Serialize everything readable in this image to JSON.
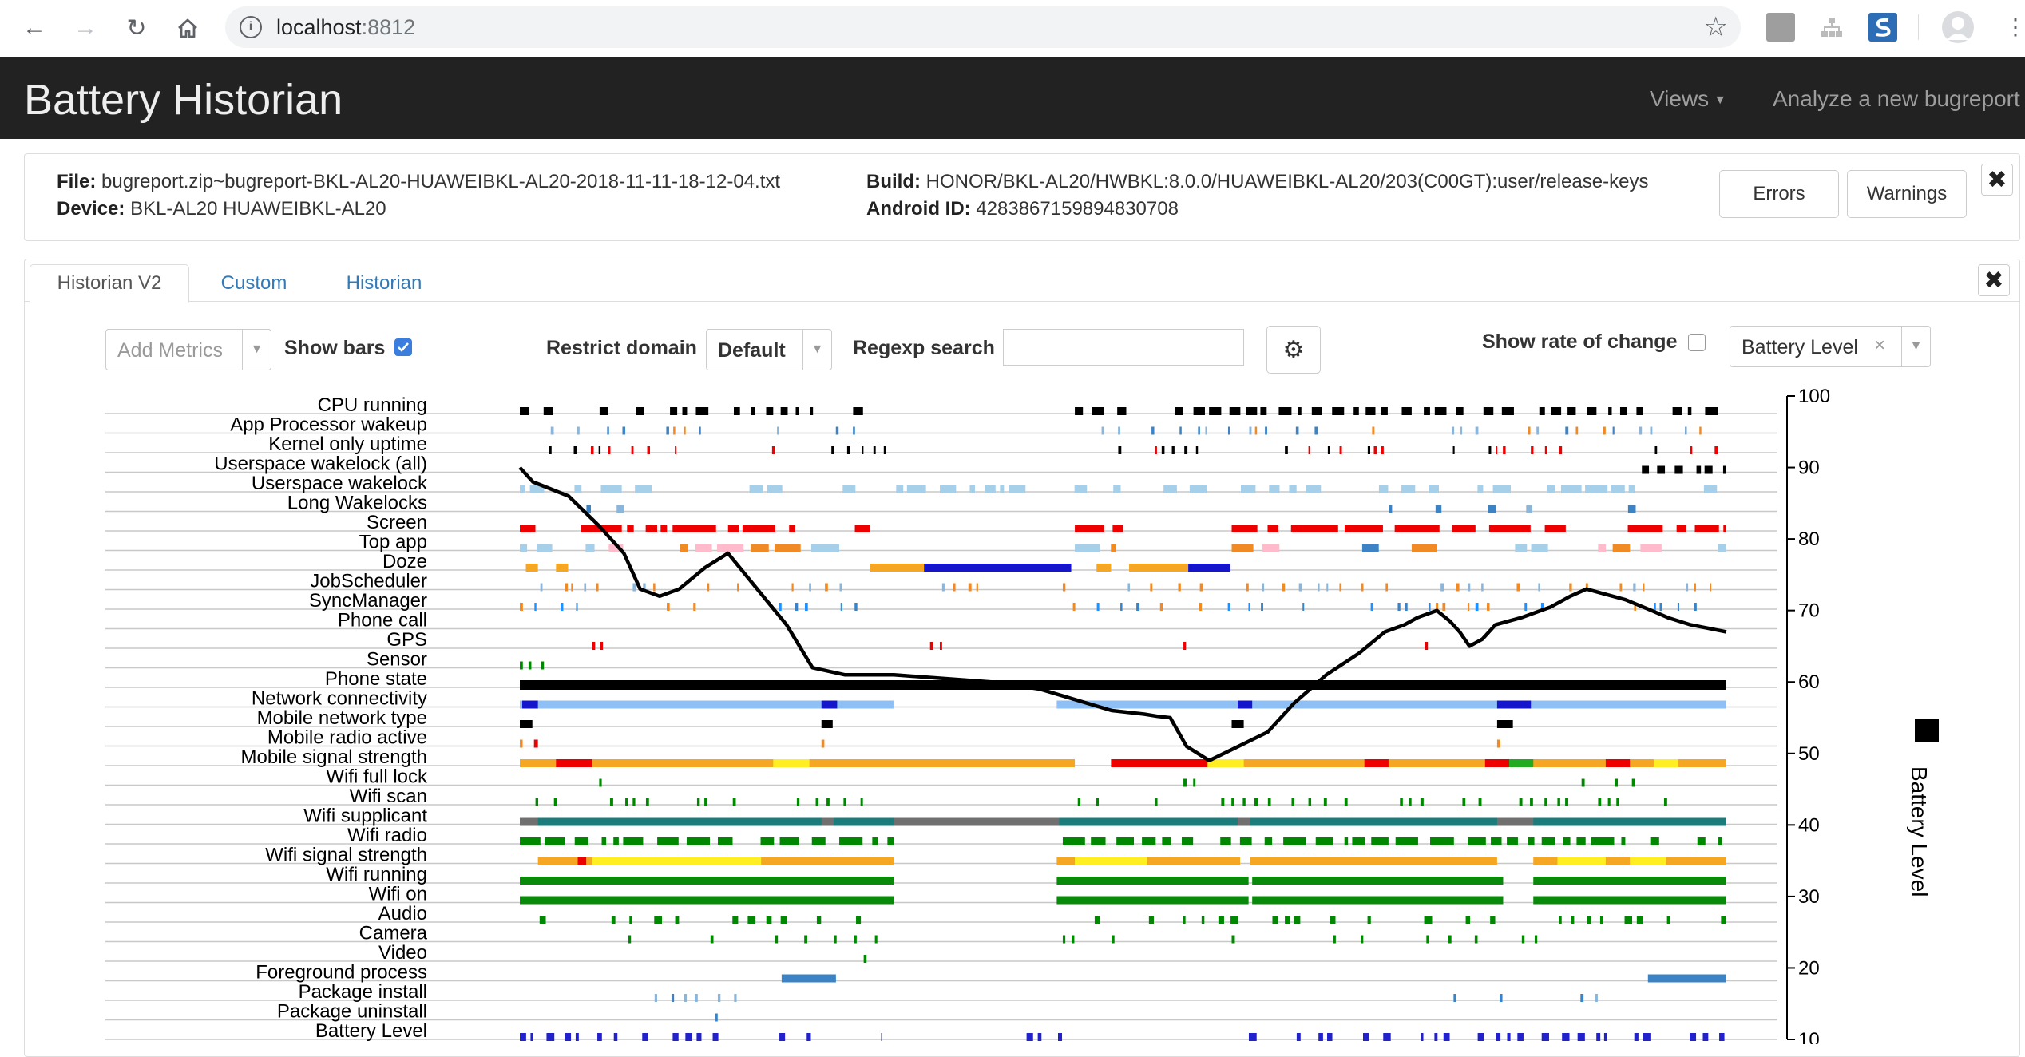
{
  "browser": {
    "url_host": "localhost",
    "url_port": ":8812"
  },
  "header": {
    "title": "Battery Historian",
    "views_label": "Views",
    "analyze_label": "Analyze a new bugreport"
  },
  "file_info": {
    "file_label": "File:",
    "file_value": "bugreport.zip~bugreport-BKL-AL20-HUAWEIBKL-AL20-2018-11-11-18-12-04.txt",
    "device_label": "Device:",
    "device_value": "BKL-AL20 HUAWEIBKL-AL20",
    "build_label": "Build:",
    "build_value": "HONOR/BKL-AL20/HWBKL:8.0.0/HUAWEIBKL-AL20/203(C00GT):user/release-keys",
    "android_id_label": "Android ID:",
    "android_id_value": "4283867159894830708",
    "errors_label": "Errors",
    "warnings_label": "Warnings"
  },
  "tabs": [
    {
      "label": "Historian V2",
      "active": true
    },
    {
      "label": "Custom",
      "active": false
    },
    {
      "label": "Historian",
      "active": false
    }
  ],
  "controls": {
    "add_metrics_placeholder": "Add Metrics",
    "show_bars_label": "Show bars",
    "show_bars_checked": true,
    "restrict_domain_label": "Restrict domain",
    "restrict_domain_value": "Default",
    "regexp_label": "Regexp search",
    "regexp_value": "",
    "show_rate_label": "Show rate of change",
    "show_rate_checked": false,
    "battery_select_value": "Battery Level"
  },
  "colors": {
    "accent_link": "#337ab7",
    "header_bg": "#222222",
    "checkbox": "#3b7ddd"
  },
  "chart_data": {
    "type": "line",
    "rows": [
      "CPU running",
      "App Processor wakeup",
      "Kernel only uptime",
      "Userspace wakelock (all)",
      "Userspace wakelock",
      "Long Wakelocks",
      "Screen",
      "Top app",
      "Doze",
      "JobScheduler",
      "SyncManager",
      "Phone call",
      "GPS",
      "Sensor",
      "Phone state",
      "Network connectivity",
      "Mobile network type",
      "Mobile radio active",
      "Mobile signal strength",
      "Wifi full lock",
      "Wifi scan",
      "Wifi supplicant",
      "Wifi radio",
      "Wifi signal strength",
      "Wifi running",
      "Wifi on",
      "Audio",
      "Camera",
      "Video",
      "Foreground process",
      "Package install",
      "Package uninstall",
      "Battery Level"
    ],
    "series": [
      {
        "name": "Battery Level",
        "x": [
          0,
          0.4,
          1.5,
          2.4,
          2.8,
          3.2,
          3.7,
          4.3,
          4.9,
          5.7,
          6.4,
          7.3,
          8.2,
          9.0,
          10.0,
          11.5,
          13.0,
          14.5,
          16.0,
          18.2,
          19.2,
          19.6,
          20.0,
          20.5,
          21.2,
          22.1,
          23.0,
          23.8,
          24.8,
          25.8,
          26.6,
          27.2,
          27.6,
          28.2,
          28.6,
          28.9,
          29.2,
          29.4,
          29.6,
          30.0,
          30.8,
          31.7,
          32.3,
          32.8,
          33.2,
          34.0,
          34.8,
          35.3,
          36.0,
          37.1
        ],
        "values": [
          90,
          88,
          86,
          82,
          80,
          78,
          73,
          72,
          73,
          76,
          78,
          73,
          68,
          62,
          61,
          61,
          60.5,
          60,
          59,
          56,
          55.5,
          55.2,
          55,
          51,
          49,
          51,
          53,
          57,
          61,
          64,
          67,
          68,
          69,
          70,
          68.5,
          67,
          65,
          65.5,
          66,
          68,
          69,
          70.5,
          72,
          73,
          72.5,
          71.5,
          70,
          69,
          68,
          67
        ],
        "color": "#000000"
      }
    ],
    "y_axis": {
      "label": "Battery Level",
      "ticks": [
        10,
        20,
        30,
        40,
        50,
        60,
        70,
        80,
        90,
        100
      ],
      "ylim": [
        10,
        100
      ],
      "side": "right"
    },
    "legend": {
      "entries": [
        {
          "label": "Battery Level",
          "color": "#000000"
        }
      ],
      "position": "right"
    },
    "grid": true
  }
}
